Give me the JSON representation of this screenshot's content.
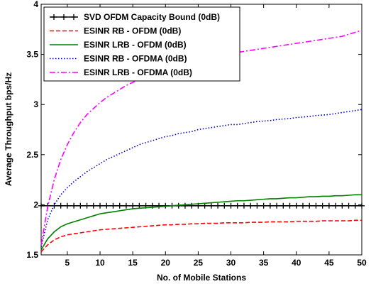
{
  "chart_data": {
    "type": "line",
    "title": "",
    "xlabel": "No. of Mobile Stations",
    "ylabel": "Average Throughput bps/Hz",
    "xlim": [
      1,
      50
    ],
    "ylim": [
      1.5,
      4
    ],
    "x_ticks": [
      "5",
      "10",
      "15",
      "20",
      "25",
      "30",
      "35",
      "40",
      "45",
      "50"
    ],
    "y_ticks": [
      "1.5",
      "2",
      "2.5",
      "3",
      "3.5",
      "4"
    ],
    "grid": false,
    "legend_position": "top-left",
    "x": [
      1,
      2,
      3,
      4,
      5,
      6,
      7,
      8,
      9,
      10,
      11,
      12,
      13,
      14,
      15,
      16,
      17,
      18,
      19,
      20,
      21,
      22,
      23,
      24,
      25,
      26,
      27,
      28,
      29,
      30,
      31,
      32,
      33,
      34,
      35,
      36,
      37,
      38,
      39,
      40,
      41,
      42,
      43,
      44,
      45,
      46,
      47,
      48,
      49,
      50
    ],
    "series": [
      {
        "name": "SVD OFDM Capacity Bound (0dB)",
        "color": "#000000",
        "style": "solid-plus",
        "values": [
          1.99,
          1.99,
          1.99,
          1.99,
          1.99,
          1.99,
          1.99,
          1.99,
          1.99,
          1.99,
          1.99,
          1.99,
          1.99,
          1.99,
          1.99,
          1.99,
          1.99,
          1.99,
          1.99,
          1.99,
          1.99,
          1.99,
          1.99,
          1.99,
          1.99,
          1.99,
          1.99,
          1.99,
          1.99,
          1.99,
          1.99,
          1.99,
          1.99,
          1.99,
          1.99,
          1.99,
          1.99,
          1.99,
          1.99,
          1.99,
          1.99,
          1.99,
          1.99,
          1.99,
          1.99,
          1.99,
          1.99,
          1.99,
          1.99,
          1.99
        ]
      },
      {
        "name": "ESINR RB - OFDM (0dB)",
        "color": "#ff0000",
        "style": "dashed",
        "values": [
          1.53,
          1.6,
          1.65,
          1.68,
          1.7,
          1.71,
          1.72,
          1.73,
          1.74,
          1.75,
          1.755,
          1.76,
          1.765,
          1.77,
          1.775,
          1.78,
          1.785,
          1.79,
          1.795,
          1.8,
          1.8,
          1.805,
          1.805,
          1.81,
          1.81,
          1.815,
          1.815,
          1.815,
          1.82,
          1.82,
          1.82,
          1.82,
          1.825,
          1.825,
          1.825,
          1.83,
          1.83,
          1.83,
          1.83,
          1.835,
          1.835,
          1.835,
          1.835,
          1.84,
          1.84,
          1.84,
          1.84,
          1.84,
          1.845,
          1.845
        ]
      },
      {
        "name": "ESINR LRB - OFDM (0dB)",
        "color": "#008000",
        "style": "solid",
        "values": [
          1.55,
          1.66,
          1.73,
          1.78,
          1.81,
          1.83,
          1.85,
          1.87,
          1.89,
          1.91,
          1.92,
          1.93,
          1.94,
          1.95,
          1.96,
          1.965,
          1.97,
          1.975,
          1.98,
          1.985,
          1.99,
          1.995,
          2.0,
          2.005,
          2.01,
          2.015,
          2.02,
          2.025,
          2.03,
          2.035,
          2.04,
          2.04,
          2.045,
          2.05,
          2.055,
          2.06,
          2.06,
          2.065,
          2.07,
          2.07,
          2.075,
          2.08,
          2.08,
          2.085,
          2.085,
          2.09,
          2.09,
          2.095,
          2.1,
          2.1
        ]
      },
      {
        "name": "ESINR RB - OFDMA (0dB)",
        "color": "#0000cc",
        "style": "dotted",
        "values": [
          1.58,
          1.85,
          2.0,
          2.1,
          2.17,
          2.23,
          2.28,
          2.33,
          2.37,
          2.41,
          2.45,
          2.48,
          2.51,
          2.54,
          2.57,
          2.6,
          2.62,
          2.64,
          2.66,
          2.68,
          2.69,
          2.71,
          2.72,
          2.73,
          2.75,
          2.76,
          2.77,
          2.78,
          2.79,
          2.8,
          2.8,
          2.81,
          2.82,
          2.83,
          2.835,
          2.84,
          2.85,
          2.855,
          2.86,
          2.87,
          2.875,
          2.88,
          2.89,
          2.895,
          2.9,
          2.91,
          2.92,
          2.93,
          2.94,
          2.95
        ]
      },
      {
        "name": "ESINR LRB - OFDMA (0dB)",
        "color": "#ff00ff",
        "style": "dash-dot",
        "values": [
          1.6,
          1.98,
          2.25,
          2.45,
          2.6,
          2.72,
          2.82,
          2.9,
          2.96,
          3.02,
          3.07,
          3.11,
          3.15,
          3.19,
          3.22,
          3.25,
          3.28,
          3.3,
          3.32,
          3.34,
          3.36,
          3.38,
          3.4,
          3.42,
          3.44,
          3.45,
          3.47,
          3.48,
          3.5,
          3.51,
          3.52,
          3.53,
          3.54,
          3.55,
          3.56,
          3.57,
          3.58,
          3.59,
          3.6,
          3.61,
          3.62,
          3.63,
          3.64,
          3.65,
          3.66,
          3.67,
          3.68,
          3.7,
          3.72,
          3.74
        ]
      }
    ]
  }
}
